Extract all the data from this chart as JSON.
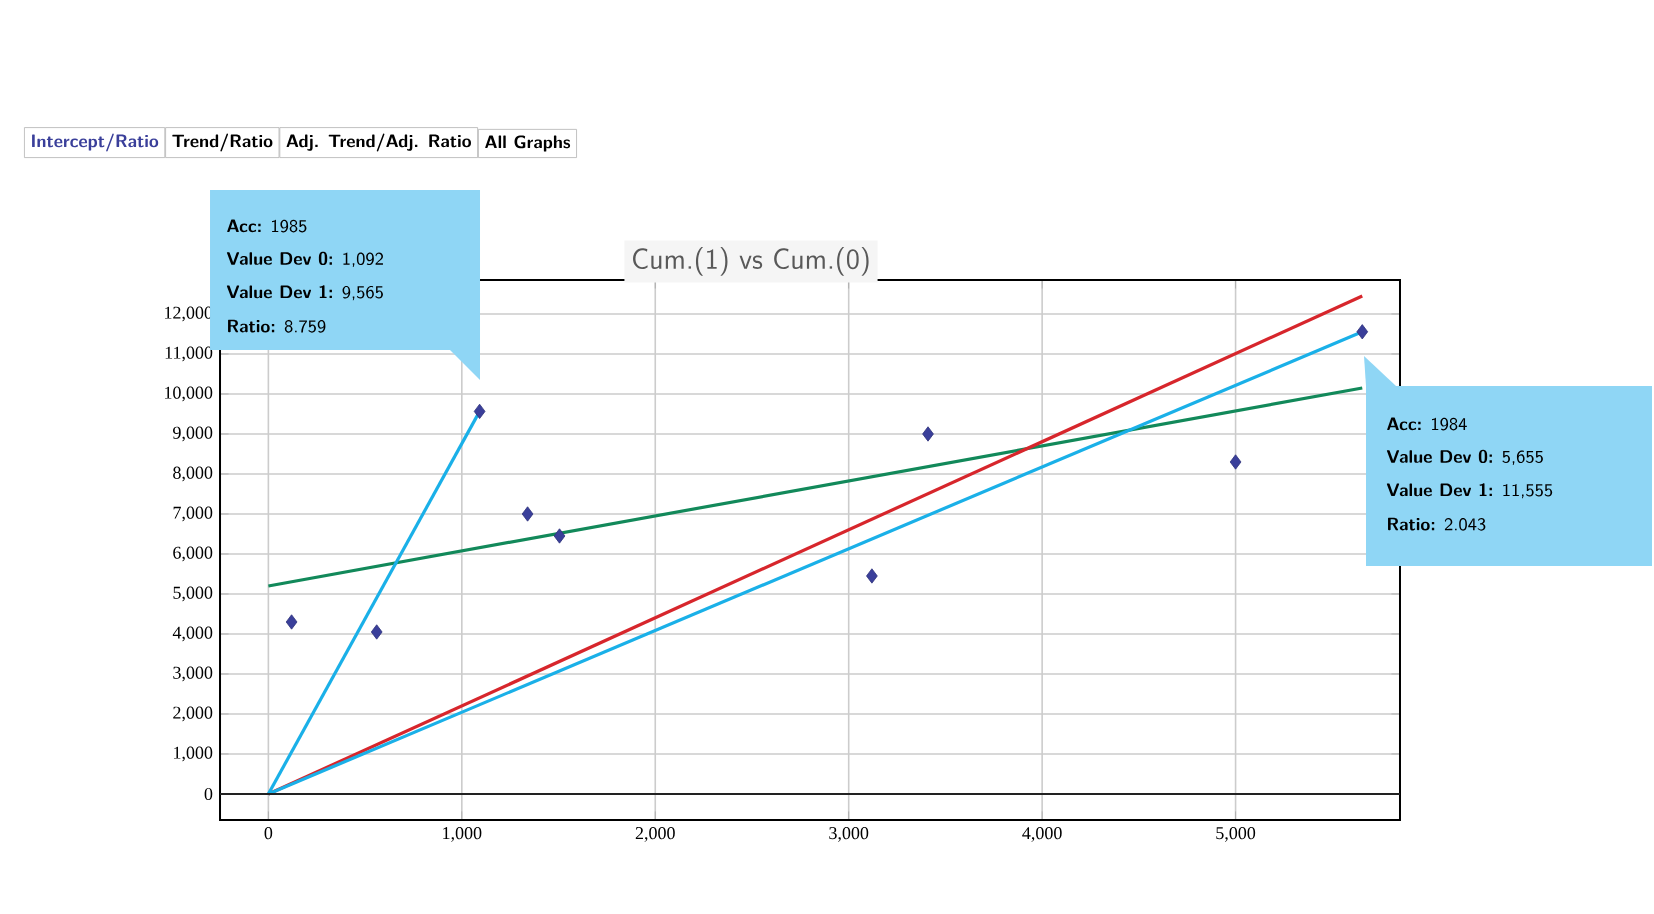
{
  "chart_data": {
    "type": "scatter",
    "title": "Cum.(1) vs Cum.(0)",
    "annotations": [
      "Intercept/Ratio",
      "Trend/Ratio",
      "Adj. Trend/Adj. Ratio",
      "All Graphs",
      "**Acc:** 1985",
      "**Value Dev 0:** 1,092",
      "**Value Dev 1:** 9,565",
      "**Ratio:** 8.759",
      "**Acc:** 1984",
      "**Value Dev 0:** 5,655",
      "**Value Dev 1:** 11,555",
      "**Ratio:** 2.043"
    ],
    "series": [
      {
        "type": "scatter",
        "color": "#3a3f9a",
        "marker": "diamond",
        "x": [
          120,
          560,
          1092,
          1340,
          1505,
          3120,
          3410,
          5000,
          5655
        ],
        "values": [
          4300,
          4050,
          9565,
          7000,
          6450,
          5450,
          9000,
          8300,
          11555
        ]
      },
      {
        "type": "line",
        "color": "#12895a",
        "marker": "none",
        "x": [
          0,
          5655
        ],
        "values": [
          5200,
          10150
        ]
      },
      {
        "type": "line",
        "color": "#d7262c",
        "marker": "none",
        "x": [
          0,
          5655
        ],
        "values": [
          0,
          12450
        ]
      },
      {
        "type": "line",
        "color": "#1ab0e8",
        "marker": "none",
        "x": [
          0,
          1092
        ],
        "values": [
          0,
          9565
        ]
      },
      {
        "type": "line",
        "color": "#1ab0e8",
        "marker": "none",
        "x": [
          0,
          5655
        ],
        "values": [
          0,
          11555
        ]
      }
    ],
    "xlim": [
      -250,
      5850
    ],
    "ylim": [
      -650,
      12850
    ],
    "xticks": [
      0,
      {
        "value": 1000,
        "label": "1,000"
      },
      {
        "value": 2000,
        "label": "2,000"
      },
      {
        "value": 3000,
        "label": "3,000"
      },
      {
        "value": 4000,
        "label": "4,000"
      },
      {
        "value": 5000,
        "label": "5,000"
      }
    ],
    "yticks": [
      0,
      {
        "value": 1000,
        "label": "1,000"
      },
      {
        "value": 2000,
        "label": "2,000"
      },
      {
        "value": 3000,
        "label": "3,000"
      },
      {
        "value": 4000,
        "label": "4,000"
      },
      {
        "value": 5000,
        "label": "5,000"
      },
      {
        "value": 6000,
        "label": "6,000"
      },
      {
        "value": 7000,
        "label": "7,000"
      },
      {
        "value": 8000,
        "label": "8,000"
      },
      {
        "value": 9000,
        "label": "9,000"
      },
      {
        "value": 10000,
        "label": "10,000"
      },
      {
        "value": 11000,
        "label": "11,000"
      },
      {
        "value": 12000,
        "label": "12,000"
      }
    ],
    "ref_lines": [
      {
        "axis": "y",
        "value": 0,
        "color": "#222222"
      }
    ],
    "grid": true
  }
}
